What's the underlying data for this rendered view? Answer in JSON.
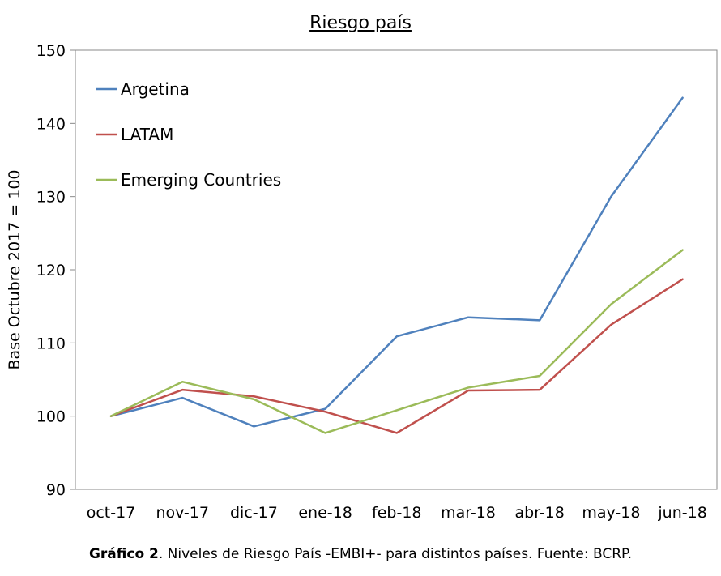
{
  "chart_data": {
    "type": "line",
    "title": "Riesgo país",
    "xlabel": "",
    "ylabel": "Base Octubre 2017 = 100",
    "ylim": [
      90,
      150
    ],
    "yticks": [
      90,
      100,
      110,
      120,
      130,
      140,
      150
    ],
    "categories": [
      "oct-17",
      "nov-17",
      "dic-17",
      "ene-18",
      "feb-18",
      "mar-18",
      "abr-18",
      "may-18",
      "jun-18"
    ],
    "legend_position": "top-left",
    "grid": false,
    "series": [
      {
        "name": "Argetina",
        "color": "#4f81bd",
        "values": [
          100.0,
          102.5,
          98.6,
          101.0,
          110.9,
          113.5,
          113.1,
          130.0,
          143.5
        ]
      },
      {
        "name": "LATAM",
        "color": "#c0504d",
        "values": [
          100.0,
          103.6,
          102.7,
          100.6,
          97.7,
          103.5,
          103.6,
          112.5,
          118.7
        ]
      },
      {
        "name": "Emerging Countries",
        "color": "#9bbb59",
        "values": [
          100.0,
          104.7,
          102.3,
          97.7,
          100.8,
          103.9,
          105.5,
          115.3,
          122.7
        ]
      }
    ]
  },
  "caption": {
    "bold": "Gráfico 2",
    "text": ". Niveles de Riesgo País -EMBI+- para distintos países. Fuente: BCRP."
  }
}
